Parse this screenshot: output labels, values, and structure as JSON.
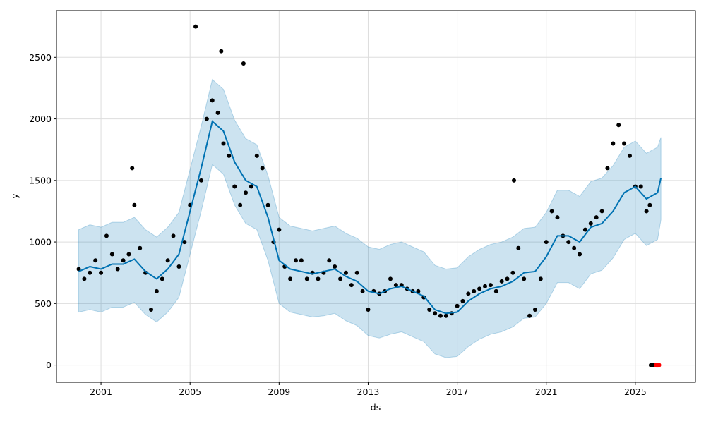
{
  "chart_data": {
    "type": "scatter",
    "title": "",
    "xlabel": "ds",
    "ylabel": "y",
    "xlim": [
      1999.0,
      2027.7
    ],
    "ylim": [
      -140,
      2880
    ],
    "x_ticks": [
      "2001",
      "2005",
      "2009",
      "2013",
      "2017",
      "2021",
      "2025"
    ],
    "y_ticks": [
      "0",
      "500",
      "1000",
      "1500",
      "2000",
      "2500"
    ],
    "grid": true,
    "colors": {
      "observed": "#000000",
      "forecast_line": "#0072B2",
      "interval": "#0072B2",
      "highlight": "#ff0000"
    },
    "observed": {
      "x": [
        2000.0,
        2000.25,
        2000.5,
        2000.75,
        2001.0,
        2001.25,
        2001.5,
        2001.75,
        2002.0,
        2002.25,
        2002.4,
        2002.5,
        2002.75,
        2003.0,
        2003.25,
        2003.5,
        2003.75,
        2004.0,
        2004.25,
        2004.5,
        2004.75,
        2005.0,
        2005.25,
        2005.5,
        2005.75,
        2006.0,
        2006.25,
        2006.4,
        2006.5,
        2006.75,
        2007.0,
        2007.25,
        2007.4,
        2007.5,
        2007.75,
        2008.0,
        2008.25,
        2008.5,
        2008.75,
        2009.0,
        2009.25,
        2009.5,
        2009.75,
        2010.0,
        2010.25,
        2010.5,
        2010.75,
        2011.0,
        2011.25,
        2011.5,
        2011.75,
        2012.0,
        2012.25,
        2012.5,
        2012.75,
        2013.0,
        2013.25,
        2013.5,
        2013.75,
        2014.0,
        2014.25,
        2014.5,
        2014.75,
        2015.0,
        2015.25,
        2015.5,
        2015.75,
        2016.0,
        2016.25,
        2016.5,
        2016.75,
        2017.0,
        2017.25,
        2017.5,
        2017.75,
        2018.0,
        2018.25,
        2018.5,
        2018.75,
        2019.0,
        2019.25,
        2019.5,
        2019.55,
        2019.75,
        2020.0,
        2020.25,
        2020.5,
        2020.75,
        2021.0,
        2021.25,
        2021.5,
        2021.75,
        2022.0,
        2022.25,
        2022.5,
        2022.75,
        2023.0,
        2023.25,
        2023.5,
        2023.75,
        2024.0,
        2024.25,
        2024.5,
        2024.75,
        2025.0,
        2025.25,
        2025.5,
        2025.65,
        2025.7,
        2025.8,
        2025.9
      ],
      "y": [
        780,
        700,
        750,
        850,
        750,
        1050,
        900,
        780,
        850,
        900,
        1600,
        1300,
        950,
        750,
        450,
        600,
        700,
        850,
        1050,
        800,
        1000,
        1300,
        2750,
        1500,
        2000,
        2150,
        2050,
        2550,
        1800,
        1700,
        1450,
        1300,
        2450,
        1400,
        1450,
        1700,
        1600,
        1300,
        1000,
        1100,
        800,
        700,
        850,
        850,
        700,
        750,
        700,
        750,
        850,
        800,
        700,
        750,
        650,
        750,
        600,
        450,
        600,
        580,
        600,
        700,
        650,
        650,
        620,
        600,
        600,
        550,
        450,
        420,
        400,
        400,
        420,
        480,
        520,
        580,
        600,
        620,
        640,
        650,
        600,
        680,
        700,
        750,
        1500,
        950,
        700,
        400,
        450,
        700,
        1000,
        1250,
        1200,
        1050,
        1000,
        950,
        900,
        1100,
        1150,
        1200,
        1250,
        1600,
        1800,
        1950,
        1800,
        1700,
        1450,
        1450,
        1250,
        1300,
        0,
        0,
        0
      ]
    },
    "highlighted": {
      "x": [
        2025.95,
        2026.0,
        2026.05
      ],
      "y": [
        0,
        0,
        0
      ]
    },
    "forecast": {
      "x": [
        2000.0,
        2000.5,
        2001.0,
        2001.5,
        2002.0,
        2002.5,
        2003.0,
        2003.5,
        2004.0,
        2004.5,
        2005.0,
        2005.5,
        2006.0,
        2006.5,
        2007.0,
        2007.5,
        2008.0,
        2008.5,
        2009.0,
        2009.5,
        2010.0,
        2010.5,
        2011.0,
        2011.5,
        2012.0,
        2012.5,
        2013.0,
        2013.5,
        2014.0,
        2014.5,
        2015.0,
        2015.5,
        2016.0,
        2016.5,
        2017.0,
        2017.5,
        2018.0,
        2018.5,
        2019.0,
        2019.5,
        2020.0,
        2020.5,
        2021.0,
        2021.5,
        2022.0,
        2022.5,
        2023.0,
        2023.5,
        2024.0,
        2024.5,
        2025.0,
        2025.5,
        2026.0,
        2026.15
      ],
      "yhat": [
        760,
        800,
        780,
        820,
        820,
        860,
        760,
        700,
        780,
        900,
        1250,
        1600,
        1980,
        1900,
        1650,
        1500,
        1450,
        1200,
        850,
        780,
        760,
        740,
        760,
        780,
        720,
        680,
        600,
        580,
        620,
        640,
        600,
        560,
        450,
        420,
        430,
        520,
        580,
        620,
        640,
        680,
        750,
        760,
        880,
        1050,
        1050,
        1000,
        1120,
        1150,
        1250,
        1400,
        1450,
        1350,
        1400,
        1520
      ],
      "lower": [
        430,
        450,
        430,
        470,
        470,
        510,
        410,
        350,
        430,
        550,
        900,
        1250,
        1630,
        1550,
        1300,
        1150,
        1100,
        850,
        500,
        430,
        410,
        390,
        400,
        420,
        360,
        320,
        240,
        220,
        250,
        270,
        230,
        190,
        90,
        60,
        70,
        150,
        210,
        250,
        270,
        310,
        380,
        390,
        500,
        670,
        670,
        620,
        740,
        770,
        870,
        1020,
        1070,
        970,
        1020,
        1180
      ],
      "upper": [
        1100,
        1140,
        1120,
        1160,
        1160,
        1200,
        1100,
        1040,
        1120,
        1240,
        1590,
        1940,
        2320,
        2240,
        1990,
        1840,
        1790,
        1540,
        1200,
        1130,
        1110,
        1090,
        1110,
        1130,
        1070,
        1030,
        960,
        940,
        980,
        1000,
        960,
        920,
        810,
        780,
        790,
        880,
        940,
        980,
        1000,
        1040,
        1110,
        1120,
        1240,
        1420,
        1420,
        1370,
        1490,
        1520,
        1620,
        1770,
        1820,
        1720,
        1770,
        1850
      ]
    }
  }
}
